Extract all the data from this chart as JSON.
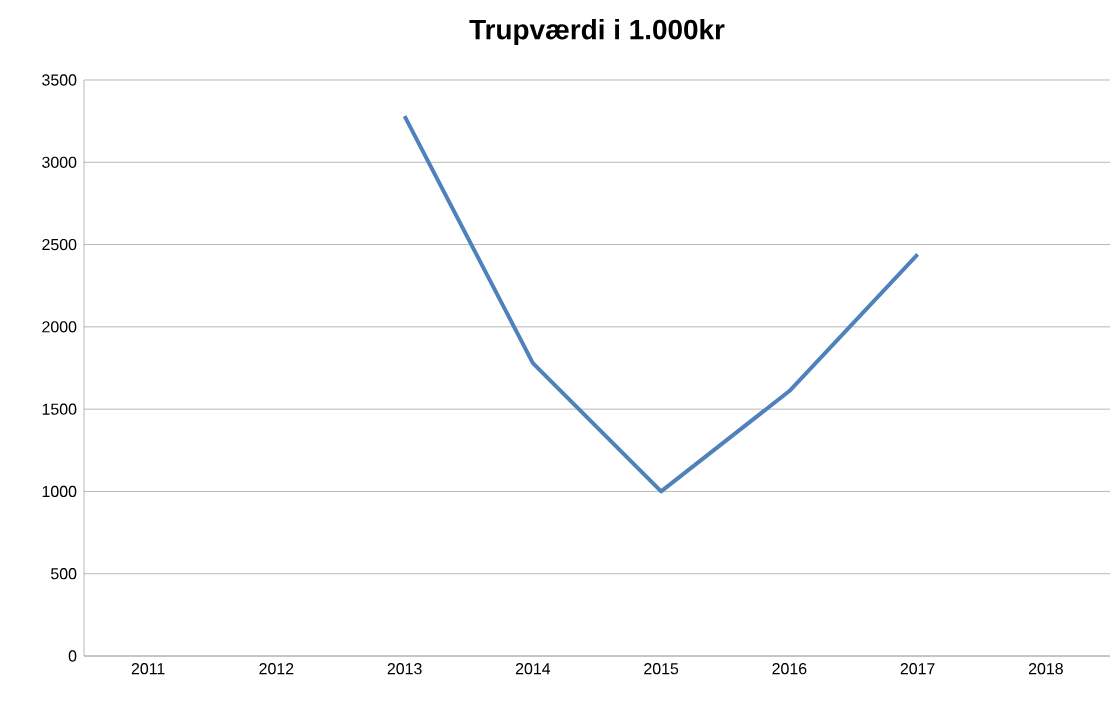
{
  "chart_data": {
    "type": "line",
    "title": "Trupværdi i 1.000kr",
    "categories": [
      "2011",
      "2012",
      "2013",
      "2014",
      "2015",
      "2016",
      "2017",
      "2018"
    ],
    "series": [
      {
        "color": "#4f81bd",
        "values": [
          null,
          null,
          3280,
          1780,
          1000,
          1610,
          2440,
          null
        ]
      }
    ],
    "ylim": [
      0,
      3500
    ],
    "yticks": [
      0,
      500,
      1000,
      1500,
      2000,
      2500,
      3000,
      3500
    ],
    "grid": "y",
    "marker": "none",
    "line_style": "solid"
  }
}
